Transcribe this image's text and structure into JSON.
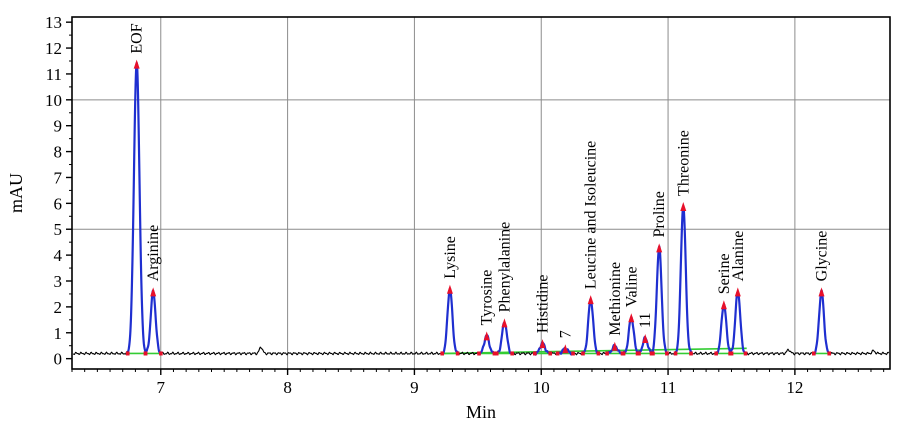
{
  "chart_data": {
    "type": "line",
    "title": "",
    "xlabel": "Min",
    "ylabel": "mAU",
    "xlim": [
      6.3,
      12.75
    ],
    "ylim": [
      -0.4,
      13.2
    ],
    "xticks": [
      7,
      8,
      9,
      10,
      11,
      12
    ],
    "yticks": [
      0,
      1,
      2,
      3,
      4,
      5,
      6,
      7,
      8,
      9,
      10,
      11,
      12,
      13
    ],
    "grid": true,
    "baseline": 0.2,
    "colors": {
      "background": "#ffffff",
      "trace": "#000000",
      "peak_fit": "#1f2fd0",
      "peak_marker": "#e8102a",
      "baseline_fit": "#33cc33",
      "grid": "#8c8c8c"
    },
    "peaks": [
      {
        "label": "EOF",
        "x": 6.81,
        "y": 11.4
      },
      {
        "label": "Arginine",
        "x": 6.94,
        "y": 2.6
      },
      {
        "label": "Lysine",
        "x": 9.28,
        "y": 2.7
      },
      {
        "label": "Tyrosine",
        "x": 9.57,
        "y": 0.9
      },
      {
        "label": "Phenylalanine",
        "x": 9.71,
        "y": 1.4
      },
      {
        "label": "Histidine",
        "x": 10.01,
        "y": 0.6
      },
      {
        "label": "7",
        "x": 10.19,
        "y": 0.4
      },
      {
        "label": "Leucine and Isoleucine",
        "x": 10.39,
        "y": 2.3
      },
      {
        "label": "Methionine",
        "x": 10.58,
        "y": 0.5
      },
      {
        "label": "Valine",
        "x": 10.71,
        "y": 1.6
      },
      {
        "label": "11",
        "x": 10.82,
        "y": 0.8
      },
      {
        "label": "Proline",
        "x": 10.93,
        "y": 4.3
      },
      {
        "label": "Threonine",
        "x": 11.12,
        "y": 5.9
      },
      {
        "label": "Serine",
        "x": 11.44,
        "y": 2.1
      },
      {
        "label": "Alanine",
        "x": 11.55,
        "y": 2.6
      },
      {
        "label": "Glycine",
        "x": 12.21,
        "y": 2.6
      }
    ]
  }
}
